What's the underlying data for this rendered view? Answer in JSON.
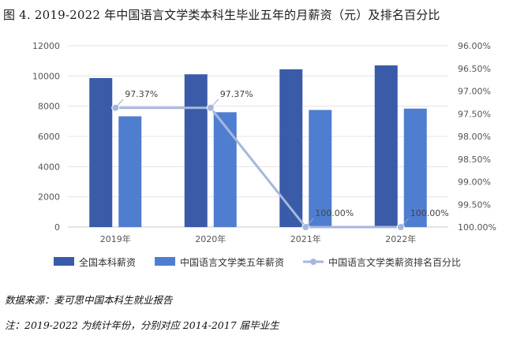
{
  "title": "图 4. 2019-2022 年中国语言文学类本科生毕业五年的月薪资（元）及排名百分比",
  "source": "数据来源：麦可思中国本科生就业报告",
  "note": "注：2019-2022 为统计年份，分别对应 2014-2017 届毕业生",
  "chart_data": {
    "type": "bar",
    "categories": [
      "2019年",
      "2020年",
      "2021年",
      "2022年"
    ],
    "series": [
      {
        "name": "全国本科薪资",
        "type": "bar",
        "axis": "left",
        "color": "#3a5ba8",
        "values": [
          9860,
          10110,
          10440,
          10700
        ]
      },
      {
        "name": "中国语言文学类五年薪资",
        "type": "bar",
        "axis": "left",
        "color": "#4f7ed0",
        "values": [
          7330,
          7600,
          7750,
          7840
        ]
      },
      {
        "name": "中国语言文学类薪资排名百分比",
        "type": "line",
        "axis": "right",
        "color": "#a6b7dd",
        "values": [
          97.37,
          97.37,
          100.0,
          100.0
        ],
        "labels": [
          "97.37%",
          "97.37%",
          "100.00%",
          "100.00%"
        ]
      }
    ],
    "y_left": {
      "min": 0,
      "max": 12000,
      "ticks": [
        "0",
        "2000",
        "4000",
        "6000",
        "8000",
        "10000",
        "12000"
      ]
    },
    "y_right": {
      "min": 96.0,
      "max": 100.0,
      "inverted": true,
      "ticks": [
        "96.00%",
        "96.50%",
        "97.00%",
        "97.50%",
        "98.00%",
        "98.50%",
        "99.00%",
        "99.50%",
        "100.00%"
      ]
    },
    "grid": true,
    "legend": "bottom"
  }
}
